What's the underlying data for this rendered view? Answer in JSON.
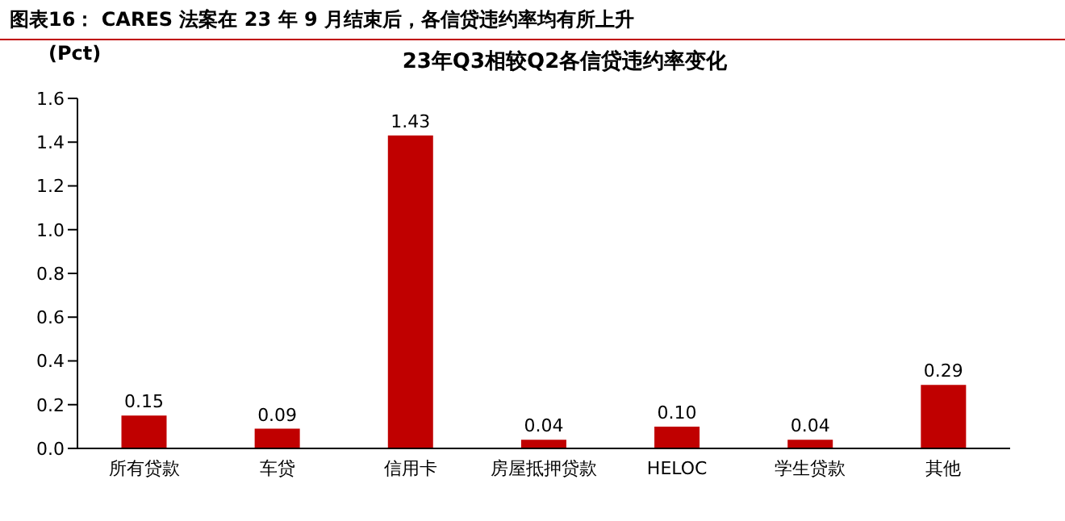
{
  "chart_data": {
    "type": "bar",
    "title": "图表16：  CARES 法案在 23 年 9 月结束后，各信贷违约率均有所上升",
    "subtitle": "23年Q3相较Q2各信贷违约率变化",
    "ylabel": "(Pct)",
    "categories": [
      "所有贷款",
      "车贷",
      "信用卡",
      "房屋抵押贷款",
      "HELOC",
      "学生贷款",
      "其他"
    ],
    "values": [
      0.15,
      0.09,
      1.43,
      0.04,
      0.1,
      0.04,
      0.29
    ],
    "value_labels": [
      "0.15",
      "0.09",
      "1.43",
      "0.04",
      "0.10",
      "0.04",
      "0.29"
    ],
    "color": "#c00000",
    "ylim": [
      0,
      1.6
    ],
    "yticks": [
      {
        "value": 0,
        "label": "0.0"
      },
      0.2,
      0.4,
      0.6,
      0.8,
      {
        "value": 1,
        "label": "1.0"
      },
      1.2,
      1.4,
      1.6
    ],
    "grid": false
  }
}
